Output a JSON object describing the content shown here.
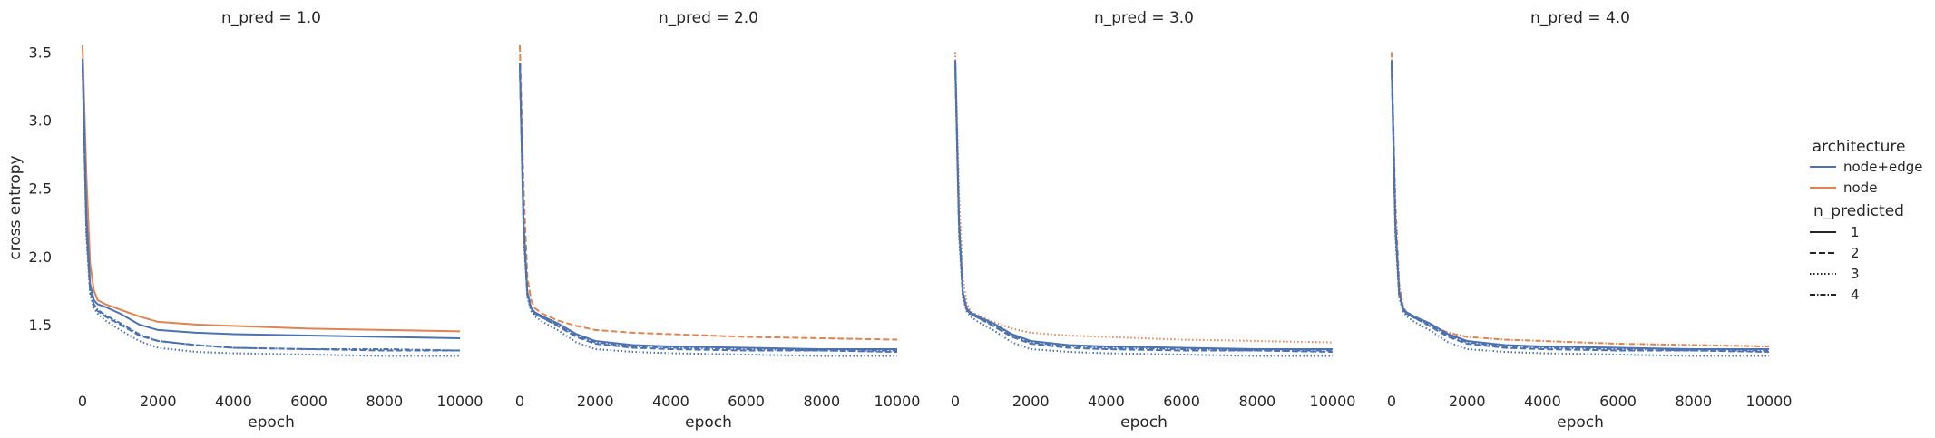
{
  "chart_data": {
    "type": "line",
    "ylabel": "cross entropy",
    "xlabel": "epoch",
    "xlim": [
      0,
      10000
    ],
    "ylim": [
      1.2,
      3.55
    ],
    "xticks": [
      0,
      2000,
      4000,
      6000,
      8000,
      10000
    ],
    "yticks": [
      1.5,
      2.0,
      2.5,
      3.0,
      3.5
    ],
    "grid": false,
    "colors": {
      "node+edge": "#4c72b0",
      "node": "#dd8452"
    },
    "legend": {
      "position": "right",
      "hue_title": "architecture",
      "hue_entries": [
        "node+edge",
        "node"
      ],
      "style_title": "n_predicted",
      "style_entries": [
        "1",
        "2",
        "3",
        "4"
      ]
    },
    "panels": [
      {
        "title": "n_pred = 1.0",
        "series": [
          {
            "architecture": "node+edge",
            "n_predicted": "1",
            "x": [
              0,
              100,
              200,
              300,
              400,
              600,
              1000,
              1500,
              2000,
              3000,
              4000,
              6000,
              8000,
              10000
            ],
            "y": [
              3.45,
              2.3,
              1.8,
              1.68,
              1.65,
              1.63,
              1.58,
              1.5,
              1.46,
              1.44,
              1.43,
              1.42,
              1.41,
              1.4
            ]
          },
          {
            "architecture": "node+edge",
            "n_predicted": "2",
            "x": [
              0,
              100,
              200,
              300,
              400,
              600,
              1000,
              1500,
              2000,
              3000,
              4000,
              6000,
              8000,
              10000
            ],
            "y": [
              3.4,
              2.2,
              1.75,
              1.64,
              1.6,
              1.56,
              1.5,
              1.42,
              1.38,
              1.35,
              1.33,
              1.32,
              1.31,
              1.31
            ]
          },
          {
            "architecture": "node+edge",
            "n_predicted": "3",
            "x": [
              0,
              100,
              200,
              300,
              400,
              600,
              1000,
              1500,
              2000,
              3000,
              4000,
              6000,
              8000,
              10000
            ],
            "y": [
              3.38,
              2.15,
              1.72,
              1.62,
              1.58,
              1.53,
              1.46,
              1.38,
              1.33,
              1.3,
              1.29,
              1.28,
              1.27,
              1.27
            ]
          },
          {
            "architecture": "node+edge",
            "n_predicted": "4",
            "x": [
              0,
              100,
              200,
              300,
              400,
              600,
              1000,
              1500,
              2000,
              3000,
              4000,
              6000,
              8000,
              10000
            ],
            "y": [
              3.42,
              2.25,
              1.76,
              1.65,
              1.61,
              1.57,
              1.51,
              1.43,
              1.38,
              1.35,
              1.33,
              1.32,
              1.32,
              1.31
            ]
          },
          {
            "architecture": "node",
            "n_predicted": "1",
            "x": [
              0,
              100,
              200,
              300,
              400,
              600,
              1000,
              1500,
              2000,
              3000,
              4000,
              6000,
              8000,
              10000
            ],
            "y": [
              3.55,
              2.6,
              1.95,
              1.75,
              1.68,
              1.65,
              1.61,
              1.56,
              1.52,
              1.5,
              1.49,
              1.47,
              1.46,
              1.45
            ]
          }
        ]
      },
      {
        "title": "n_pred = 2.0",
        "series": [
          {
            "architecture": "node+edge",
            "n_predicted": "1",
            "x": [
              0,
              100,
              200,
              300,
              400,
              600,
              1000,
              1500,
              2000,
              3000,
              4000,
              6000,
              8000,
              10000
            ],
            "y": [
              3.42,
              2.25,
              1.74,
              1.62,
              1.59,
              1.56,
              1.51,
              1.43,
              1.38,
              1.35,
              1.34,
              1.33,
              1.32,
              1.32
            ]
          },
          {
            "architecture": "node+edge",
            "n_predicted": "2",
            "x": [
              0,
              100,
              200,
              300,
              400,
              600,
              1000,
              1500,
              2000,
              3000,
              4000,
              6000,
              8000,
              10000
            ],
            "y": [
              3.4,
              2.2,
              1.72,
              1.61,
              1.58,
              1.55,
              1.49,
              1.41,
              1.36,
              1.33,
              1.32,
              1.31,
              1.31,
              1.3
            ]
          },
          {
            "architecture": "node+edge",
            "n_predicted": "3",
            "x": [
              0,
              100,
              200,
              300,
              400,
              600,
              1000,
              1500,
              2000,
              3000,
              4000,
              6000,
              8000,
              10000
            ],
            "y": [
              3.38,
              2.15,
              1.7,
              1.6,
              1.56,
              1.52,
              1.46,
              1.37,
              1.32,
              1.3,
              1.29,
              1.28,
              1.27,
              1.27
            ]
          },
          {
            "architecture": "node+edge",
            "n_predicted": "4",
            "x": [
              0,
              100,
              200,
              300,
              400,
              600,
              1000,
              1500,
              2000,
              3000,
              4000,
              6000,
              8000,
              10000
            ],
            "y": [
              3.41,
              2.22,
              1.73,
              1.62,
              1.58,
              1.55,
              1.5,
              1.42,
              1.37,
              1.34,
              1.33,
              1.32,
              1.31,
              1.31
            ]
          },
          {
            "architecture": "node",
            "n_predicted": "2",
            "x": [
              0,
              100,
              200,
              300,
              400,
              600,
              1000,
              1500,
              2000,
              3000,
              4000,
              6000,
              8000,
              10000
            ],
            "y": [
              3.55,
              2.5,
              1.85,
              1.68,
              1.62,
              1.58,
              1.53,
              1.49,
              1.46,
              1.44,
              1.43,
              1.41,
              1.4,
              1.39
            ]
          }
        ]
      },
      {
        "title": "n_pred = 3.0",
        "series": [
          {
            "architecture": "node+edge",
            "n_predicted": "1",
            "x": [
              0,
              100,
              200,
              300,
              400,
              600,
              1000,
              1500,
              2000,
              3000,
              4000,
              6000,
              8000,
              10000
            ],
            "y": [
              3.44,
              2.25,
              1.74,
              1.62,
              1.59,
              1.56,
              1.51,
              1.43,
              1.38,
              1.35,
              1.34,
              1.33,
              1.32,
              1.32
            ]
          },
          {
            "architecture": "node+edge",
            "n_predicted": "2",
            "x": [
              0,
              100,
              200,
              300,
              400,
              600,
              1000,
              1500,
              2000,
              3000,
              4000,
              6000,
              8000,
              10000
            ],
            "y": [
              3.41,
              2.2,
              1.72,
              1.61,
              1.58,
              1.55,
              1.49,
              1.41,
              1.36,
              1.33,
              1.32,
              1.31,
              1.31,
              1.3
            ]
          },
          {
            "architecture": "node+edge",
            "n_predicted": "3",
            "x": [
              0,
              100,
              200,
              300,
              400,
              600,
              1000,
              1500,
              2000,
              3000,
              4000,
              6000,
              8000,
              10000
            ],
            "y": [
              3.38,
              2.15,
              1.7,
              1.6,
              1.56,
              1.52,
              1.46,
              1.37,
              1.32,
              1.3,
              1.29,
              1.28,
              1.27,
              1.27
            ]
          },
          {
            "architecture": "node+edge",
            "n_predicted": "4",
            "x": [
              0,
              100,
              200,
              300,
              400,
              600,
              1000,
              1500,
              2000,
              3000,
              4000,
              6000,
              8000,
              10000
            ],
            "y": [
              3.42,
              2.22,
              1.73,
              1.62,
              1.58,
              1.55,
              1.5,
              1.42,
              1.37,
              1.34,
              1.33,
              1.32,
              1.31,
              1.31
            ]
          },
          {
            "architecture": "node",
            "n_predicted": "3",
            "x": [
              0,
              100,
              200,
              300,
              400,
              600,
              1000,
              1500,
              2000,
              3000,
              4000,
              6000,
              8000,
              10000
            ],
            "y": [
              3.5,
              2.45,
              1.85,
              1.66,
              1.6,
              1.57,
              1.52,
              1.47,
              1.44,
              1.42,
              1.41,
              1.39,
              1.38,
              1.37
            ]
          }
        ]
      },
      {
        "title": "n_pred = 4.0",
        "series": [
          {
            "architecture": "node+edge",
            "n_predicted": "1",
            "x": [
              0,
              100,
              200,
              300,
              400,
              600,
              1000,
              1500,
              2000,
              3000,
              4000,
              6000,
              8000,
              10000
            ],
            "y": [
              3.44,
              2.25,
              1.74,
              1.62,
              1.59,
              1.56,
              1.51,
              1.43,
              1.38,
              1.35,
              1.34,
              1.33,
              1.32,
              1.32
            ]
          },
          {
            "architecture": "node+edge",
            "n_predicted": "2",
            "x": [
              0,
              100,
              200,
              300,
              400,
              600,
              1000,
              1500,
              2000,
              3000,
              4000,
              6000,
              8000,
              10000
            ],
            "y": [
              3.41,
              2.2,
              1.72,
              1.61,
              1.58,
              1.55,
              1.49,
              1.41,
              1.36,
              1.33,
              1.32,
              1.31,
              1.31,
              1.3
            ]
          },
          {
            "architecture": "node+edge",
            "n_predicted": "3",
            "x": [
              0,
              100,
              200,
              300,
              400,
              600,
              1000,
              1500,
              2000,
              3000,
              4000,
              6000,
              8000,
              10000
            ],
            "y": [
              3.38,
              2.15,
              1.7,
              1.6,
              1.56,
              1.52,
              1.46,
              1.37,
              1.32,
              1.3,
              1.29,
              1.28,
              1.27,
              1.27
            ]
          },
          {
            "architecture": "node+edge",
            "n_predicted": "4",
            "x": [
              0,
              100,
              200,
              300,
              400,
              600,
              1000,
              1500,
              2000,
              3000,
              4000,
              6000,
              8000,
              10000
            ],
            "y": [
              3.42,
              2.22,
              1.73,
              1.62,
              1.58,
              1.55,
              1.5,
              1.42,
              1.37,
              1.34,
              1.33,
              1.32,
              1.31,
              1.31
            ]
          },
          {
            "architecture": "node",
            "n_predicted": "4",
            "x": [
              0,
              100,
              200,
              300,
              400,
              600,
              1000,
              1500,
              2000,
              3000,
              4000,
              6000,
              8000,
              10000
            ],
            "y": [
              3.5,
              2.4,
              1.8,
              1.64,
              1.58,
              1.55,
              1.5,
              1.44,
              1.41,
              1.39,
              1.38,
              1.36,
              1.35,
              1.34
            ]
          }
        ]
      }
    ]
  }
}
